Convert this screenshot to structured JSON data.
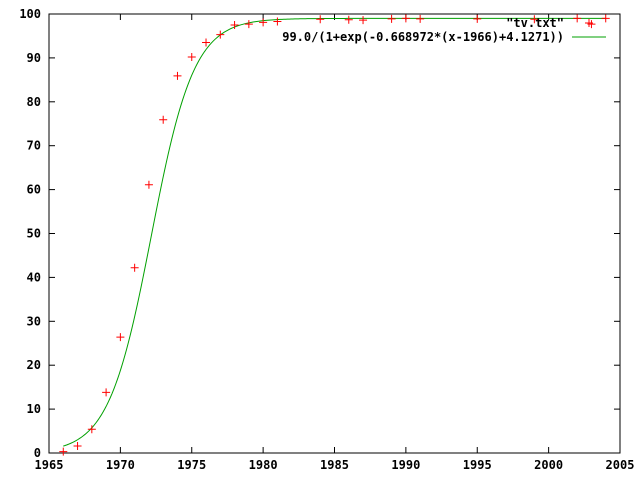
{
  "chart_data": {
    "type": "scatter",
    "title": "",
    "xlabel": "",
    "ylabel": "",
    "xlim": [
      1965,
      2005
    ],
    "ylim": [
      0,
      100
    ],
    "x_ticks": [
      "1965",
      "1970",
      "1975",
      "1980",
      "1985",
      "1990",
      "1995",
      "2000",
      "2005"
    ],
    "y_ticks": [
      "0",
      "10",
      "20",
      "30",
      "40",
      "50",
      "60",
      "70",
      "80",
      "90",
      "100"
    ],
    "grid": false,
    "legend_position": "top-right",
    "series": [
      {
        "name": "\"tv.txt\"",
        "kind": "points",
        "marker": "plus",
        "color": "#ff0000",
        "x": [
          1966,
          1967,
          1968,
          1969,
          1970,
          1971,
          1972,
          1973,
          1974,
          1975,
          1976,
          1977,
          1978,
          1979,
          1980,
          1981,
          1984,
          1986,
          1987,
          1989,
          1990,
          1991,
          1995,
          1999,
          2002,
          2003,
          2004
        ],
        "y": [
          0.3,
          1.6,
          5.4,
          13.8,
          26.4,
          42.2,
          61.1,
          75.9,
          85.9,
          90.2,
          93.5,
          95.3,
          97.5,
          97.7,
          98.1,
          98.3,
          98.8,
          98.7,
          98.6,
          98.9,
          99.0,
          98.9,
          98.9,
          98.8,
          99.0,
          97.7,
          99.0
        ]
      },
      {
        "name": "99.0/(1+exp(-0.668972*(x-1966)+4.1271))",
        "kind": "function",
        "color": "#00a000",
        "function": {
          "a": 99.0,
          "b": 0.668972,
          "x0": 1966,
          "c": 4.1271
        },
        "domain": [
          1966,
          2004
        ]
      }
    ]
  }
}
